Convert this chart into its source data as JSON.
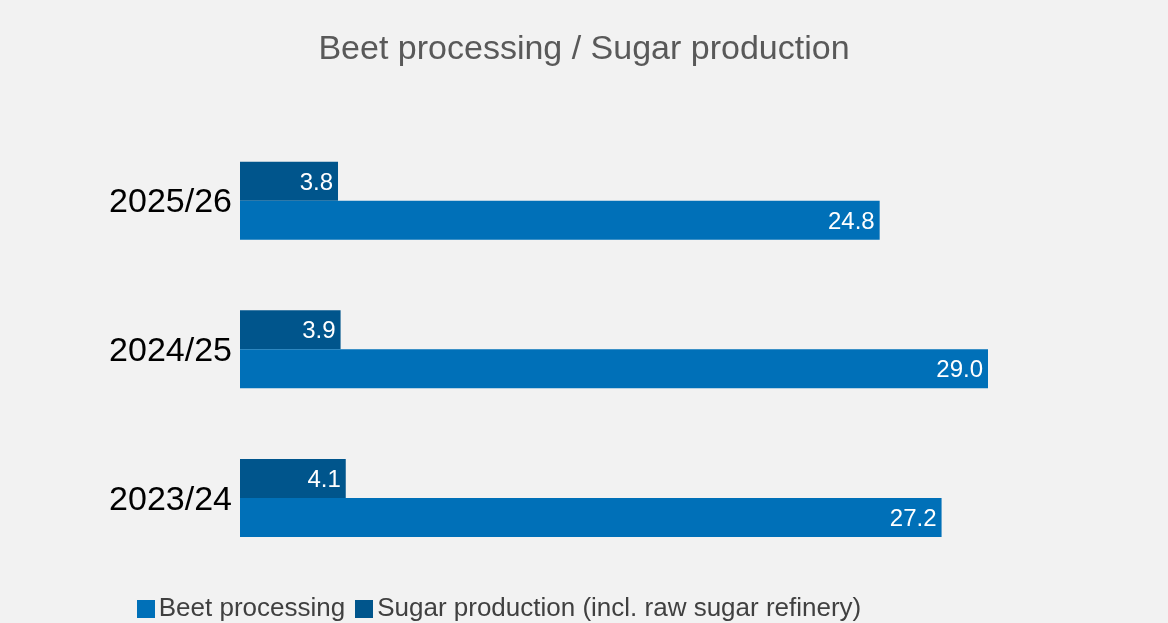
{
  "chart_data": {
    "type": "bar",
    "orientation": "horizontal",
    "title": "Beet processing / Sugar production",
    "categories": [
      "2025/26",
      "2024/25",
      "2023/24"
    ],
    "series": [
      {
        "name": "Sugar production (incl. raw sugar refinery)",
        "color": "#00558c",
        "values": [
          3.8,
          3.9,
          4.1
        ],
        "value_labels": [
          "3.8",
          "3.9",
          "4.1"
        ]
      },
      {
        "name": "Beet processing",
        "color": "#0070b8",
        "values": [
          24.8,
          29.0,
          27.2
        ],
        "value_labels": [
          "24.8",
          "29.0",
          "27.2"
        ]
      }
    ],
    "legend": "bottom",
    "grid": false
  }
}
